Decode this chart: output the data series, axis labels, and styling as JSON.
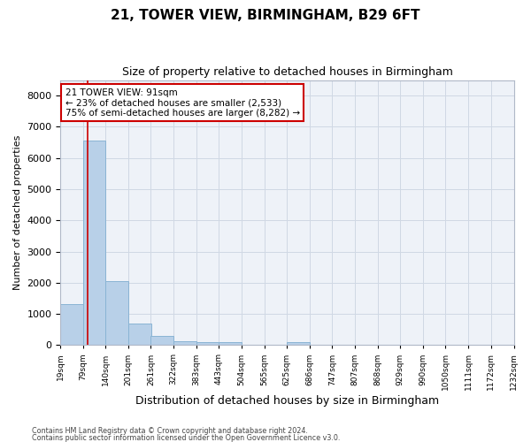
{
  "title1": "21, TOWER VIEW, BIRMINGHAM, B29 6FT",
  "title2": "Size of property relative to detached houses in Birmingham",
  "xlabel": "Distribution of detached houses by size in Birmingham",
  "ylabel": "Number of detached properties",
  "annotation_title": "21 TOWER VIEW: 91sqm",
  "annotation_line1": "← 23% of detached houses are smaller (2,533)",
  "annotation_line2": "75% of semi-detached houses are larger (8,282) →",
  "property_size_sqm": 91,
  "footer1": "Contains HM Land Registry data © Crown copyright and database right 2024.",
  "footer2": "Contains public sector information licensed under the Open Government Licence v3.0.",
  "bar_left_edges": [
    19,
    79,
    140,
    201,
    261,
    322,
    383,
    443,
    504,
    565,
    625,
    686,
    747,
    807,
    868,
    929,
    990,
    1050,
    1111,
    1172
  ],
  "bar_heights": [
    1300,
    6560,
    2060,
    680,
    290,
    130,
    80,
    100,
    0,
    0,
    80,
    0,
    0,
    0,
    0,
    0,
    0,
    0,
    0,
    0
  ],
  "bin_width": 61,
  "bar_color": "#b8d0e8",
  "bar_edgecolor": "#8ab4d4",
  "vline_x": 91,
  "vline_color": "#cc0000",
  "annotation_box_edgecolor": "#cc0000",
  "annotation_box_facecolor": "#ffffff",
  "ylim": [
    0,
    8500
  ],
  "yticks": [
    0,
    1000,
    2000,
    3000,
    4000,
    5000,
    6000,
    7000,
    8000
  ],
  "grid_color": "#d0d8e4",
  "bg_color": "#eef2f8",
  "title1_fontsize": 11,
  "title2_fontsize": 9,
  "xlabel_fontsize": 9,
  "ylabel_fontsize": 8,
  "annotation_fontsize": 7.5,
  "tick_fontsize": 6.5,
  "tick_labels": [
    "19sqm",
    "79sqm",
    "140sqm",
    "201sqm",
    "261sqm",
    "322sqm",
    "383sqm",
    "443sqm",
    "504sqm",
    "565sqm",
    "625sqm",
    "686sqm",
    "747sqm",
    "807sqm",
    "868sqm",
    "929sqm",
    "990sqm",
    "1050sqm",
    "1111sqm",
    "1172sqm",
    "1232sqm"
  ]
}
